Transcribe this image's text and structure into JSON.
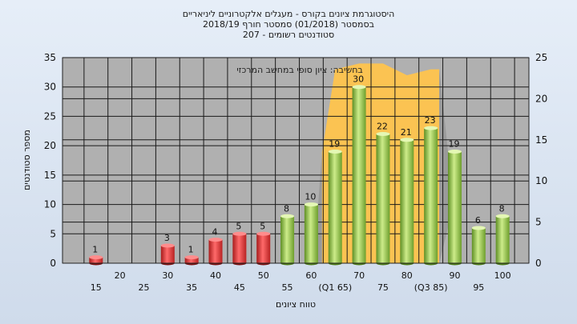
{
  "chart_data": {
    "type": "bar",
    "title_lines": [
      "היסטוגרמת ציונים בקורס - מעגלים אלקטרוניים ליניאריים",
      "בסמסטר  (01/2018)  סמסטר חורף 2018/19",
      "סטודנטים רשומים - 207"
    ],
    "annotation": "בחשיבה: ציון סופי במחשב המרכזי",
    "xlabel": "טווח ציונים",
    "ylabel": "מספר סטודנטים",
    "ylim_left": [
      0,
      35
    ],
    "yticks_left": [
      "0",
      "5",
      "10",
      "15",
      "20",
      "25",
      "30",
      "35"
    ],
    "ylim_right": [
      0,
      25
    ],
    "yticks_right": [
      "0",
      "5",
      "10",
      "15",
      "20",
      "25"
    ],
    "grid": true,
    "categories": [
      "15",
      "20",
      "25",
      "30",
      "35",
      "40",
      "45",
      "50",
      "55",
      "60",
      "65",
      "70",
      "75",
      "80",
      "85",
      "90",
      "95",
      "100"
    ],
    "x_tick_labels": [
      "15",
      "20",
      "25",
      "30",
      "35",
      "40",
      "45",
      "50",
      "55",
      "60",
      "(Q1 65)",
      "70",
      "75",
      "80",
      "(Q3 85)",
      "90",
      "95",
      "100"
    ],
    "values": [
      1,
      0,
      0,
      3,
      1,
      4,
      5,
      5,
      8,
      10,
      19,
      30,
      22,
      21,
      23,
      19,
      6,
      8
    ],
    "bar_labels": [
      "1",
      "",
      "",
      "3",
      "1",
      "4",
      "5",
      "5",
      "8",
      "10",
      "19",
      "30",
      "22",
      "21",
      "23",
      "19",
      "6",
      "8"
    ],
    "bar_colors": [
      "red",
      "red",
      "red",
      "red",
      "red",
      "red",
      "red",
      "red",
      "green",
      "green",
      "green",
      "green",
      "green",
      "green",
      "green",
      "green",
      "green",
      "green"
    ],
    "band": {
      "color": "#ffc44d",
      "x": [
        "65",
        "70",
        "75",
        "80",
        "85"
      ],
      "values": [
        33,
        34,
        34,
        32,
        33
      ]
    },
    "colors": {
      "red": "#e03a3a",
      "green": "#9acd4a",
      "plot_bg": "#b0b0b0",
      "band": "#ffc44d"
    }
  }
}
